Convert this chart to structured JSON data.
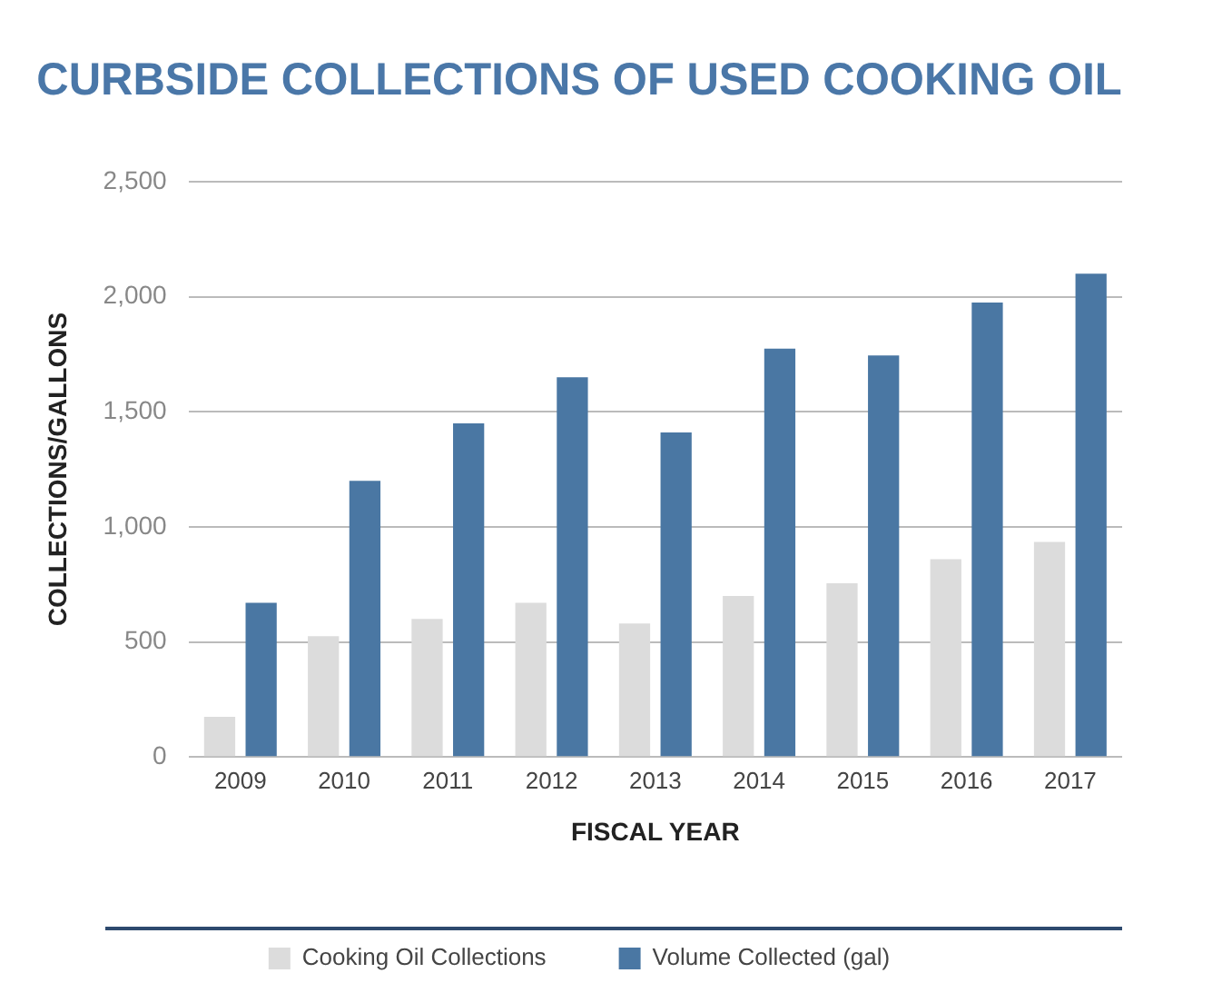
{
  "chart_data": {
    "type": "bar",
    "title": "CURBSIDE COLLECTIONS OF USED COOKING OIL",
    "xlabel": "FISCAL YEAR",
    "ylabel": "COLLECTIONS/GALLONS",
    "categories": [
      "2009",
      "2010",
      "2011",
      "2012",
      "2013",
      "2014",
      "2015",
      "2016",
      "2017"
    ],
    "series": [
      {
        "name": "Cooking Oil Collections",
        "color": "#dcdcdc",
        "values": [
          175,
          525,
          600,
          670,
          580,
          700,
          755,
          860,
          935
        ]
      },
      {
        "name": "Volume Collected (gal)",
        "color": "#4a77a3",
        "values": [
          670,
          1200,
          1450,
          1650,
          1410,
          1775,
          1745,
          1975,
          2100
        ]
      }
    ],
    "ylim": [
      0,
      2500
    ],
    "yticks": [
      {
        "value": 0,
        "label": "0"
      },
      {
        "value": 500,
        "label": "500"
      },
      {
        "value": 1000,
        "label": "1,000"
      },
      {
        "value": 1500,
        "label": "1,500"
      },
      {
        "value": 2000,
        "label": "2,000"
      },
      {
        "value": 2500,
        "label": "2,500"
      }
    ],
    "grid": "y",
    "legend": "bottom"
  }
}
